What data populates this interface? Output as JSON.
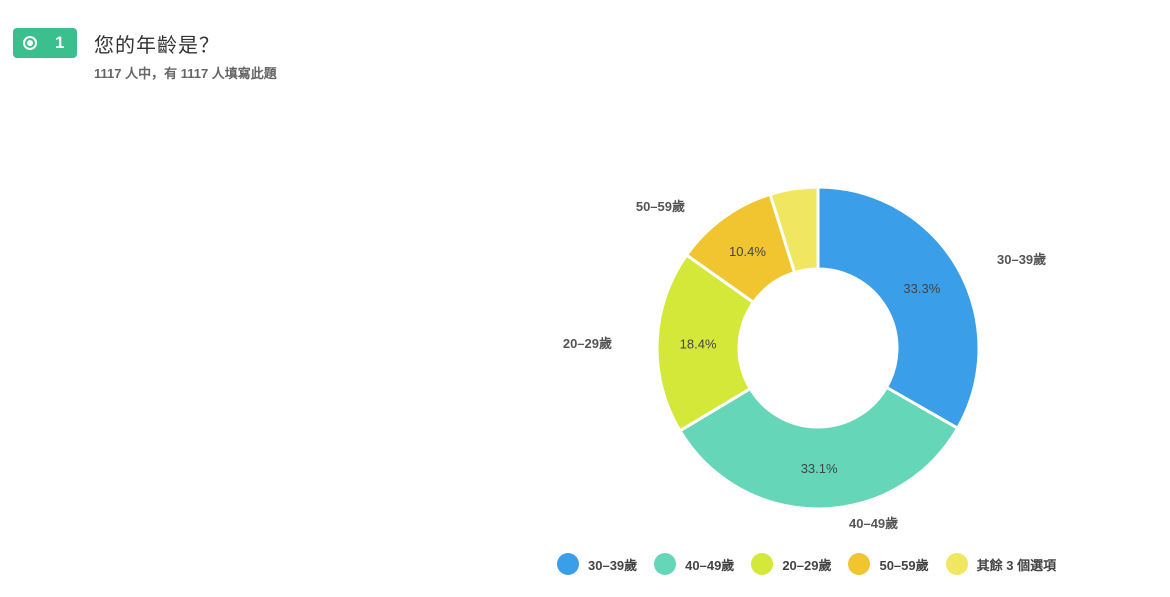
{
  "question": {
    "number": "1",
    "title": "您的年齡是？",
    "subtitle": "1117 人中，有 1117 人填寫此題",
    "badge_color": "#3cbf8f"
  },
  "chart_data": {
    "type": "pie",
    "donut": true,
    "title": "",
    "slices": [
      {
        "label": "30–39歲",
        "value": 33.3,
        "value_label": "33.3%",
        "color": "#3a9fe8"
      },
      {
        "label": "40–49歲",
        "value": 33.1,
        "value_label": "33.1%",
        "color": "#66d6b8"
      },
      {
        "label": "20–29歲",
        "value": 18.4,
        "value_label": "18.4%",
        "color": "#d4e83a"
      },
      {
        "label": "50–59歲",
        "value": 10.4,
        "value_label": "10.4%",
        "color": "#f0c530"
      },
      {
        "label": "其餘 3 個選項",
        "value": 4.8,
        "value_label": "",
        "color": "#f0e660"
      }
    ],
    "legend_position": "bottom"
  },
  "legend": {
    "items": [
      {
        "label": "30–39歲",
        "color": "#3a9fe8"
      },
      {
        "label": "40–49歲",
        "color": "#66d6b8"
      },
      {
        "label": "20–29歲",
        "color": "#d4e83a"
      },
      {
        "label": "50–59歲",
        "color": "#f0c530"
      },
      {
        "label": "其餘 3 個選項",
        "color": "#f0e660"
      }
    ]
  }
}
